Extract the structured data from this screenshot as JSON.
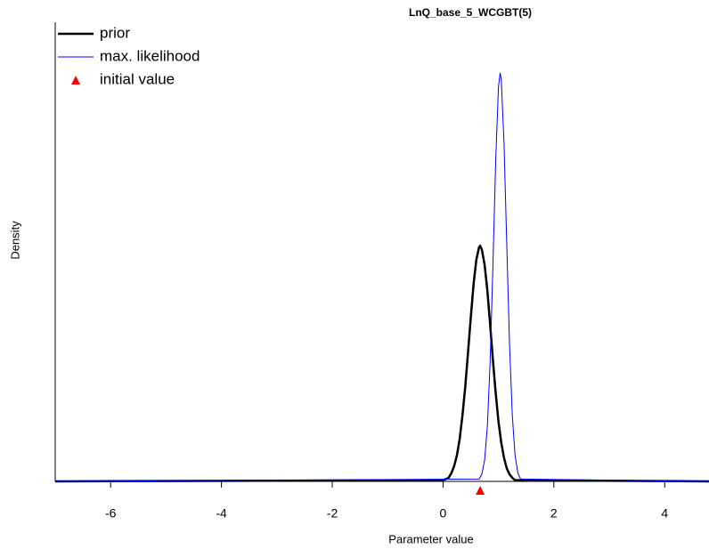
{
  "chart_data": {
    "type": "line",
    "title": "LnQ_base_5_WCGBT(5)",
    "x_label": "Parameter value",
    "y_label": "Density",
    "xlim": [
      -7,
      4.8
    ],
    "ylim": [
      0,
      3.9
    ],
    "xticks": [
      -6,
      -4,
      -2,
      0,
      2,
      4
    ],
    "legend": "upper left",
    "series": [
      {
        "name": "prior",
        "color": "#000000",
        "width": 2.5,
        "x": [
          -7,
          0,
          0.05,
          0.1,
          0.15,
          0.2,
          0.25,
          0.3,
          0.35,
          0.4,
          0.45,
          0.5,
          0.55,
          0.6,
          0.65,
          0.67,
          0.7,
          0.75,
          0.8,
          0.85,
          0.9,
          0.95,
          1.0,
          1.05,
          1.1,
          1.15,
          1.2,
          1.25,
          1.3,
          1.35,
          4.8
        ],
        "values": [
          0,
          0.01,
          0.02,
          0.03,
          0.07,
          0.13,
          0.22,
          0.36,
          0.56,
          0.8,
          1.09,
          1.39,
          1.67,
          1.88,
          1.99,
          2.0,
          1.97,
          1.84,
          1.62,
          1.33,
          1.03,
          0.75,
          0.51,
          0.33,
          0.2,
          0.11,
          0.06,
          0.03,
          0.01,
          0.01,
          0
        ]
      },
      {
        "name": "max. likelihood",
        "color": "#0000ff",
        "width": 1,
        "x": [
          -7,
          0.65,
          0.7,
          0.75,
          0.8,
          0.85,
          0.9,
          0.95,
          1.0,
          1.03,
          1.05,
          1.1,
          1.15,
          1.2,
          1.25,
          1.3,
          1.35,
          1.4,
          4.8
        ],
        "values": [
          0,
          0.02,
          0.06,
          0.18,
          0.47,
          1.02,
          1.83,
          2.72,
          3.35,
          3.47,
          3.42,
          2.88,
          2.01,
          1.16,
          0.56,
          0.22,
          0.07,
          0.02,
          0
        ]
      },
      {
        "name": "initial value",
        "color": "#ff0000",
        "marker": "triangle",
        "x": [
          0.67
        ]
      }
    ]
  }
}
